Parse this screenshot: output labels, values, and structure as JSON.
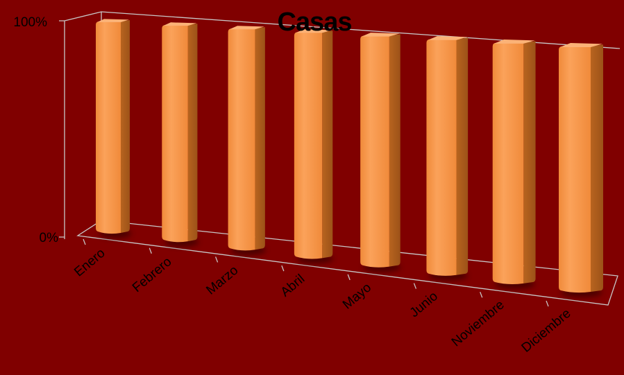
{
  "chart_data": {
    "type": "bar",
    "title": "Casas",
    "categories": [
      "Enero",
      "Febrero",
      "Marzo",
      "Abril",
      "Mayo",
      "Junio",
      "Noviembre",
      "Diciembre"
    ],
    "values": [
      100,
      100,
      100,
      100,
      100,
      100,
      100,
      100
    ],
    "y_ticks": [
      "0%",
      "100%"
    ],
    "ylim": [
      0,
      100
    ],
    "legend": "none",
    "grid": false,
    "colors": {
      "background": "#800000",
      "bar_front": "#F79646",
      "bar_side": "#B8641F",
      "bar_top": "#FBB277",
      "axis": "#C8C8C8"
    }
  }
}
